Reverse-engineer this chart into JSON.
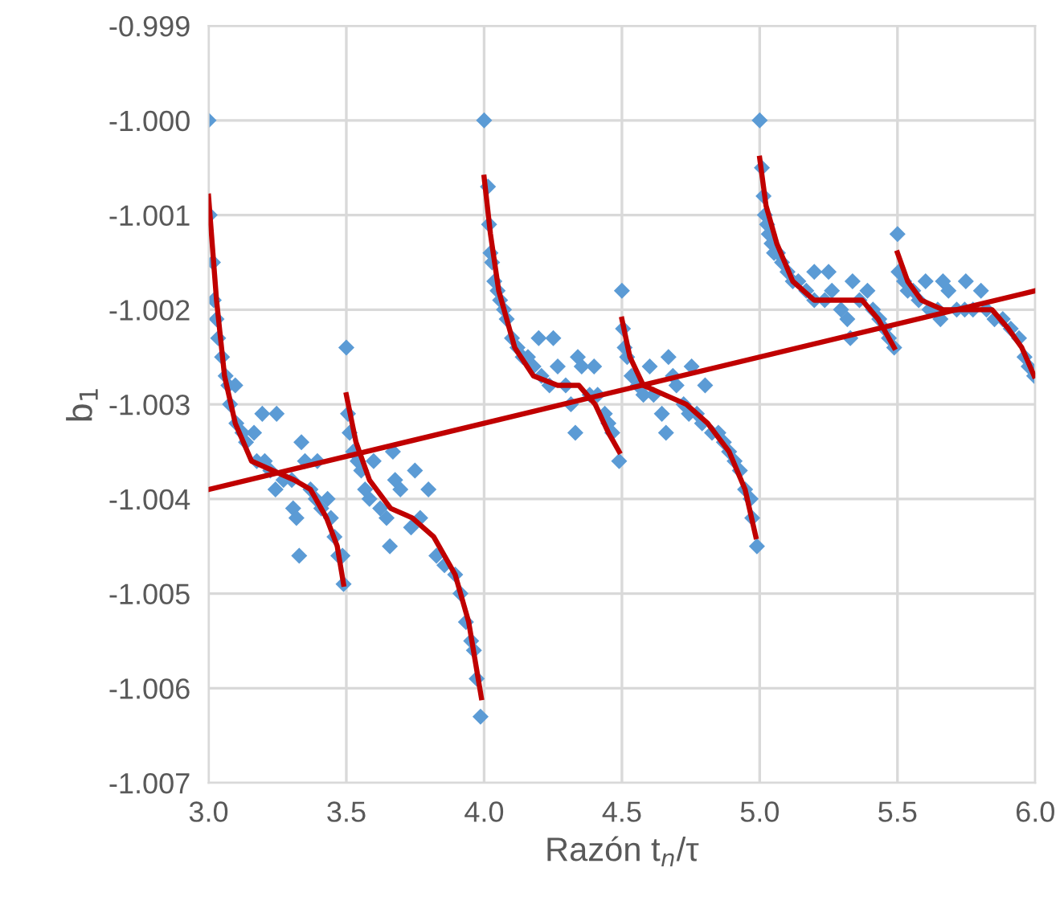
{
  "chart_data": {
    "type": "scatter",
    "xlabel": "Razón t$_{n}$/τ",
    "ylabel": "b$_{1}$",
    "xlim": [
      3.0,
      6.0
    ],
    "xticks": [
      {
        "value": 3.0,
        "label": "3.0"
      },
      3.5,
      {
        "value": 4.0,
        "label": "4.0"
      },
      4.5,
      {
        "value": 5.0,
        "label": "5.0"
      },
      5.5,
      {
        "value": 6.0,
        "label": "6.0"
      }
    ],
    "ylim": [
      -1.007,
      -0.999
    ],
    "yticks": [
      {
        "value": -1.007,
        "label": "-1.007"
      },
      {
        "value": -1.006,
        "label": "-1.006"
      },
      {
        "value": -1.005,
        "label": "-1.005"
      },
      {
        "value": -1.004,
        "label": "-1.004"
      },
      {
        "value": -1.003,
        "label": "-1.003"
      },
      {
        "value": -1.002,
        "label": "-1.002"
      },
      {
        "value": -1.001,
        "label": "-1.001"
      },
      {
        "value": -1.0,
        "label": "-1.000"
      },
      {
        "value": -0.999,
        "label": "-0.999"
      }
    ],
    "grid": true,
    "legend": false,
    "series": [
      {
        "color": "#5b9bd5",
        "marker": "diamond",
        "x": [
          3.0,
          3.004,
          3.016,
          3.019,
          3.029,
          3.035,
          3.049,
          3.062,
          3.072,
          3.097,
          3.078,
          3.101,
          3.123,
          3.136,
          3.165,
          3.195,
          3.247,
          3.175,
          3.204,
          3.224,
          3.243,
          3.272,
          3.302,
          3.337,
          3.35,
          3.395,
          3.307,
          3.319,
          3.329,
          3.37,
          3.389,
          3.409,
          3.432,
          3.444,
          3.457,
          3.471,
          3.486,
          3.49,
          3.5,
          3.506,
          3.512,
          3.525,
          3.541,
          3.554,
          3.568,
          3.584,
          3.599,
          3.623,
          3.646,
          3.658,
          3.669,
          3.677,
          3.696,
          3.749,
          3.798,
          3.735,
          3.768,
          3.827,
          3.856,
          3.895,
          3.914,
          3.934,
          3.953,
          3.963,
          3.973,
          3.987,
          4.0,
          4.014,
          4.018,
          4.023,
          4.029,
          4.037,
          4.049,
          4.058,
          4.072,
          4.082,
          4.101,
          4.121,
          4.14,
          4.159,
          4.198,
          4.251,
          4.179,
          4.208,
          4.237,
          4.267,
          4.296,
          4.315,
          4.331,
          4.34,
          4.399,
          4.354,
          4.383,
          4.412,
          4.438,
          4.451,
          4.465,
          4.49,
          4.5,
          4.504,
          4.51,
          4.519,
          4.535,
          4.558,
          4.578,
          4.601,
          4.669,
          4.615,
          4.645,
          4.66,
          4.685,
          4.698,
          4.753,
          4.802,
          4.724,
          4.743,
          4.772,
          4.791,
          4.827,
          4.85,
          4.87,
          4.889,
          4.909,
          4.928,
          4.947,
          4.967,
          4.973,
          4.99,
          5.0,
          5.008,
          5.014,
          5.019,
          5.027,
          5.033,
          5.043,
          5.052,
          5.066,
          5.081,
          5.101,
          5.12,
          5.14,
          5.198,
          5.25,
          5.169,
          5.198,
          5.236,
          5.262,
          5.295,
          5.318,
          5.329,
          5.337,
          5.391,
          5.362,
          5.411,
          5.434,
          5.453,
          5.469,
          5.488,
          5.5,
          5.504,
          5.524,
          5.537,
          5.557,
          5.577,
          5.602,
          5.665,
          5.748,
          5.803,
          5.616,
          5.656,
          5.646,
          5.685,
          5.715,
          5.744,
          5.774,
          5.823,
          5.852,
          5.882,
          5.911,
          5.941,
          5.961,
          5.976,
          5.996
        ],
        "values": [
          -1.0,
          -1.001,
          -1.0015,
          -1.0019,
          -1.0021,
          -1.0023,
          -1.0025,
          -1.0027,
          -1.0028,
          -1.0028,
          -1.003,
          -1.0032,
          -1.0033,
          -1.0034,
          -1.0033,
          -1.0031,
          -1.0031,
          -1.0036,
          -1.0036,
          -1.0037,
          -1.0039,
          -1.0038,
          -1.0038,
          -1.0034,
          -1.0036,
          -1.0036,
          -1.0041,
          -1.0042,
          -1.0046,
          -1.0039,
          -1.004,
          -1.0041,
          -1.004,
          -1.0042,
          -1.0044,
          -1.0046,
          -1.0046,
          -1.0049,
          -1.0024,
          -1.0031,
          -1.0033,
          -1.0035,
          -1.0036,
          -1.0037,
          -1.0039,
          -1.004,
          -1.0036,
          -1.0041,
          -1.0042,
          -1.0045,
          -1.0035,
          -1.0038,
          -1.0039,
          -1.0037,
          -1.0039,
          -1.0043,
          -1.0042,
          -1.0046,
          -1.0047,
          -1.0048,
          -1.005,
          -1.0053,
          -1.0055,
          -1.0056,
          -1.0059,
          -1.0063,
          -1.0,
          -1.0007,
          -1.0011,
          -1.0014,
          -1.0015,
          -1.0017,
          -1.0018,
          -1.0019,
          -1.002,
          -1.0021,
          -1.0023,
          -1.0024,
          -1.0025,
          -1.0025,
          -1.0023,
          -1.0023,
          -1.0026,
          -1.0027,
          -1.0028,
          -1.0026,
          -1.0028,
          -1.003,
          -1.0033,
          -1.0025,
          -1.0026,
          -1.0026,
          -1.0029,
          -1.0029,
          -1.0031,
          -1.0032,
          -1.0033,
          -1.0036,
          -1.0018,
          -1.0022,
          -1.0024,
          -1.0025,
          -1.0027,
          -1.0028,
          -1.0029,
          -1.0026,
          -1.0025,
          -1.0029,
          -1.0031,
          -1.0033,
          -1.0027,
          -1.0028,
          -1.0026,
          -1.0028,
          -1.003,
          -1.0031,
          -1.0031,
          -1.0032,
          -1.0033,
          -1.0033,
          -1.0034,
          -1.0035,
          -1.0036,
          -1.0037,
          -1.0039,
          -1.004,
          -1.0042,
          -1.0045,
          -1.0,
          -1.0005,
          -1.0008,
          -1.001,
          -1.0011,
          -1.0012,
          -1.0013,
          -1.0014,
          -1.0014,
          -1.0015,
          -1.0016,
          -1.0017,
          -1.0017,
          -1.0016,
          -1.0016,
          -1.0018,
          -1.0019,
          -1.0019,
          -1.0018,
          -1.002,
          -1.0021,
          -1.0023,
          -1.0017,
          -1.0018,
          -1.0019,
          -1.002,
          -1.0021,
          -1.0022,
          -1.0023,
          -1.0024,
          -1.0012,
          -1.0016,
          -1.0017,
          -1.0018,
          -1.0018,
          -1.0019,
          -1.0017,
          -1.0017,
          -1.0017,
          -1.0018,
          -1.002,
          -1.0021,
          -1.002,
          -1.0018,
          -1.002,
          -1.002,
          -1.002,
          -1.002,
          -1.0021,
          -1.0021,
          -1.0022,
          -1.0023,
          -1.0025,
          -1.0026,
          -1.0027
        ]
      },
      {
        "type": "line",
        "color": "#c00000",
        "x": [
          3.0,
          3.029,
          3.058,
          3.097,
          3.156,
          3.233,
          3.311,
          3.37,
          3.428,
          3.467,
          3.49
        ],
        "values": [
          -1.0008,
          -1.0019,
          -1.0027,
          -1.0032,
          -1.0036,
          -1.0037,
          -1.0038,
          -1.0039,
          -1.0042,
          -1.0045,
          -1.0049
        ]
      },
      {
        "type": "line",
        "color": "#c00000",
        "x": [
          3.5,
          3.535,
          3.584,
          3.661,
          3.739,
          3.817,
          3.895,
          3.944,
          3.99
        ],
        "values": [
          -1.0029,
          -1.0034,
          -1.0038,
          -1.0041,
          -1.0042,
          -1.0044,
          -1.0048,
          -1.0053,
          -1.0061
        ]
      },
      {
        "type": "line",
        "color": "#c00000",
        "x": [
          4.0,
          4.023,
          4.053,
          4.111,
          4.179,
          4.267,
          4.344,
          4.403,
          4.451,
          4.49
        ],
        "values": [
          -1.0006,
          -1.0012,
          -1.0018,
          -1.0024,
          -1.0027,
          -1.0028,
          -1.0028,
          -1.003,
          -1.0033,
          -1.0035
        ]
      },
      {
        "type": "line",
        "color": "#c00000",
        "x": [
          4.5,
          4.529,
          4.578,
          4.656,
          4.734,
          4.811,
          4.889,
          4.947,
          4.986
        ],
        "values": [
          -1.0021,
          -1.0025,
          -1.0028,
          -1.0029,
          -1.003,
          -1.0032,
          -1.0035,
          -1.0039,
          -1.0044
        ]
      },
      {
        "type": "line",
        "color": "#c00000",
        "x": [
          5.0,
          5.023,
          5.062,
          5.12,
          5.198,
          5.295,
          5.372,
          5.43,
          5.488
        ],
        "values": [
          -1.0004,
          -1.0009,
          -1.0013,
          -1.0017,
          -1.0019,
          -1.0019,
          -1.0019,
          -1.0021,
          -1.0024
        ]
      },
      {
        "type": "line",
        "color": "#c00000",
        "x": [
          5.5,
          5.537,
          5.587,
          5.665,
          5.764,
          5.843,
          5.902,
          5.951,
          5.996
        ],
        "values": [
          -1.0014,
          -1.0017,
          -1.0019,
          -1.002,
          -1.002,
          -1.002,
          -1.0022,
          -1.0024,
          -1.0027
        ]
      },
      {
        "type": "line",
        "color": "#c00000",
        "x": [
          3.0,
          6.0
        ],
        "values": [
          -1.0039,
          -1.0018
        ]
      }
    ]
  }
}
